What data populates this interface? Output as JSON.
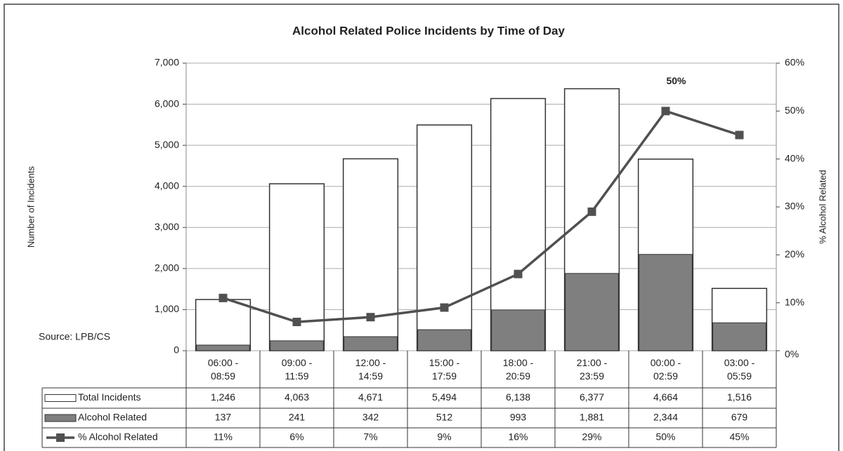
{
  "chart_data": {
    "type": "bar-line",
    "title": "Alcohol Related Police Incidents by Time of Day",
    "ylabel": "Number of Incidents",
    "y2label": "% Alcohol Related",
    "annotations": [
      {
        "text": "50%",
        "index": 6
      },
      {
        "text": "Source: LPB/CS"
      }
    ],
    "categories": [
      "06:00 - 08:59",
      "09:00 - 11:59",
      "12:00 - 14:59",
      "15:00 - 17:59",
      "18:00 - 20:59",
      "21:00 - 23:59",
      "00:00 - 02:59",
      "03:00 - 05:59"
    ],
    "series": [
      {
        "name": "Total Incidents",
        "color": "#ffffff",
        "values": [
          1246,
          4063,
          4671,
          5494,
          6138,
          6377,
          4664,
          1516
        ],
        "value_labels": [
          "1,246",
          "4,063",
          "4,671",
          "5,494",
          "6,138",
          "6,377",
          "4,664",
          "1,516"
        ]
      },
      {
        "name": "Alcohol Related",
        "color": "#7f7f7f",
        "values": [
          137,
          241,
          342,
          512,
          993,
          1881,
          2344,
          679
        ],
        "value_labels": [
          "137",
          "241",
          "342",
          "512",
          "993",
          "1,881",
          "2,344",
          "679"
        ]
      },
      {
        "name": "% Alcohol Related",
        "color": "#505050",
        "axis": "y2",
        "values": [
          11,
          6,
          7,
          9,
          16,
          29,
          50,
          45
        ],
        "value_labels": [
          "11%",
          "6%",
          "7%",
          "9%",
          "16%",
          "29%",
          "50%",
          "45%"
        ]
      }
    ],
    "ylim": [
      0,
      7000
    ],
    "yticks": [
      0,
      {
        "value": 1000,
        "label": "1,000"
      },
      {
        "value": 2000,
        "label": "2,000"
      },
      {
        "value": 3000,
        "label": "3,000"
      },
      {
        "value": 4000,
        "label": "4,000"
      },
      {
        "value": 5000,
        "label": "5,000"
      },
      {
        "value": 6000,
        "label": "6,000"
      },
      {
        "value": 7000,
        "label": "7,000"
      }
    ],
    "y2lim": [
      0,
      60
    ],
    "y2ticks": [
      {
        "value": 0,
        "label": "0%"
      },
      {
        "value": 10,
        "label": "10%"
      },
      {
        "value": 20,
        "label": "20%"
      },
      {
        "value": 30,
        "label": "30%"
      },
      {
        "value": 40,
        "label": "40%"
      },
      {
        "value": 50,
        "label": "50%"
      },
      {
        "value": 60,
        "label": "60%"
      }
    ],
    "grid": true
  }
}
